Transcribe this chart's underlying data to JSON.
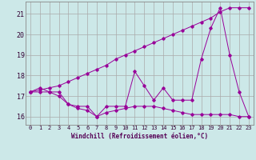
{
  "xlabel": "Windchill (Refroidissement éolien,°C)",
  "background_color": "#cce8e8",
  "line_color": "#990099",
  "grid_color": "#aaaaaa",
  "xlim": [
    -0.5,
    23.5
  ],
  "ylim": [
    15.6,
    21.6
  ],
  "yticks": [
    16,
    17,
    18,
    19,
    20,
    21
  ],
  "xticks": [
    0,
    1,
    2,
    3,
    4,
    5,
    6,
    7,
    8,
    9,
    10,
    11,
    12,
    13,
    14,
    15,
    16,
    17,
    18,
    19,
    20,
    21,
    22,
    23
  ],
  "series1": [
    17.2,
    17.4,
    17.2,
    17.0,
    16.6,
    16.5,
    16.5,
    16.0,
    16.5,
    16.5,
    16.5,
    18.2,
    17.5,
    16.8,
    17.4,
    16.8,
    16.8,
    16.8,
    18.8,
    20.3,
    21.3,
    19.0,
    17.2,
    16.0
  ],
  "series2": [
    17.2,
    17.2,
    17.2,
    17.2,
    16.6,
    16.4,
    16.3,
    16.0,
    16.2,
    16.3,
    16.4,
    16.5,
    16.5,
    16.5,
    16.4,
    16.3,
    16.2,
    16.1,
    16.1,
    16.1,
    16.1,
    16.1,
    16.0,
    16.0
  ],
  "series3": [
    17.2,
    17.3,
    17.4,
    17.5,
    17.7,
    17.9,
    18.1,
    18.3,
    18.5,
    18.8,
    19.0,
    19.2,
    19.4,
    19.6,
    19.8,
    20.0,
    20.2,
    20.4,
    20.6,
    20.8,
    21.1,
    21.3,
    21.3,
    21.3
  ]
}
